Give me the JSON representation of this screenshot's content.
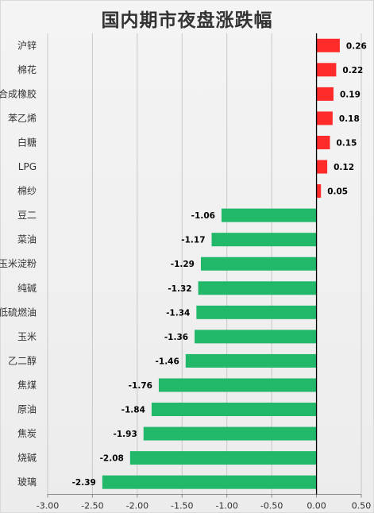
{
  "chart_data": {
    "type": "bar",
    "orientation": "horizontal",
    "title": "国内期市夜盘涨跌幅",
    "xlabel": "",
    "ylabel": "",
    "xlim": [
      -3.0,
      0.5
    ],
    "x_ticks": [
      "-3.00",
      "-2.50",
      "-2.00",
      "-1.50",
      "-1.00",
      "-0.50",
      "0.00",
      "0.50"
    ],
    "grid": "vertical",
    "legend": "none",
    "categories": [
      "沪锌",
      "棉花",
      "合成橡胶",
      "苯乙烯",
      "白糖",
      "LPG",
      "棉纱",
      "豆二",
      "菜油",
      "玉米淀粉",
      "纯碱",
      "低硫燃油",
      "玉米",
      "乙二醇",
      "焦煤",
      "原油",
      "焦炭",
      "烧碱",
      "玻璃"
    ],
    "values": [
      0.26,
      0.22,
      0.19,
      0.18,
      0.15,
      0.12,
      0.05,
      -1.06,
      -1.17,
      -1.29,
      -1.32,
      -1.34,
      -1.36,
      -1.46,
      -1.76,
      -1.84,
      -1.93,
      -2.08,
      -2.39
    ],
    "value_labels": [
      "0.26",
      "0.22",
      "0.19",
      "0.18",
      "0.15",
      "0.12",
      "0.05",
      "-1.06",
      "-1.17",
      "-1.29",
      "-1.32",
      "-1.34",
      "-1.36",
      "-1.46",
      "-1.76",
      "-1.84",
      "-1.93",
      "-2.08",
      "-2.39"
    ],
    "colors": {
      "positive": "#ff2a2a",
      "negative": "#21b86a",
      "axis": "#000000",
      "grid": "#c8c8c8"
    }
  }
}
